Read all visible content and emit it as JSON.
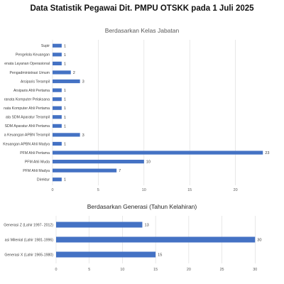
{
  "header": {
    "title": "Data Statistik Pegawai Dit. PMPU OTSKK pada 1 Juli 2025"
  },
  "colors": {
    "bar": "#4472c4",
    "grid": "#d9d9d9"
  },
  "chart_data": [
    {
      "type": "bar",
      "orientation": "horizontal",
      "title": "Berdasarkan  Kelas Jabatan",
      "categories": [
        "Supir",
        "Pengelola Keuangan",
        "enata Layanan Operasional",
        "Pengadministrasi Umum",
        "Arsiparis Terampil",
        "Arsiparis Ahli Pertama",
        "ranata Komputer Pelaksana",
        "nata Komputer Ahli Pertama",
        "ata SDM Aparatur Terampil",
        "SDM Aparatur Ahli Pertama",
        "a Keuangan APBN Terampil",
        "Keuangan APBN Ahli Madya",
        "PFM Ahli Pertama",
        "PFM Ahli Muda",
        "PFM Ahli Madya",
        "Direktur"
      ],
      "values": [
        1,
        1,
        1,
        2,
        3,
        1,
        1,
        1,
        1,
        1,
        3,
        1,
        23,
        10,
        7,
        1
      ],
      "xlim": [
        0,
        25
      ],
      "ticks": [
        0,
        5,
        10,
        15,
        20
      ],
      "grid": true,
      "legend": "none"
    },
    {
      "type": "bar",
      "orientation": "horizontal",
      "title": "Berdasarkan Generasi (Tahun Kelahiran)",
      "categories": [
        "Generasi Z (Lahir 1997- 2012)",
        "asi Milenial (Lahir 1981-1996)",
        "Generasi X (Lahir 1965-1980)"
      ],
      "values": [
        13,
        30,
        15
      ],
      "xlim": [
        0,
        35
      ],
      "ticks": [
        0,
        5,
        10,
        15,
        20,
        25,
        30
      ],
      "grid": true,
      "legend": "none"
    }
  ]
}
